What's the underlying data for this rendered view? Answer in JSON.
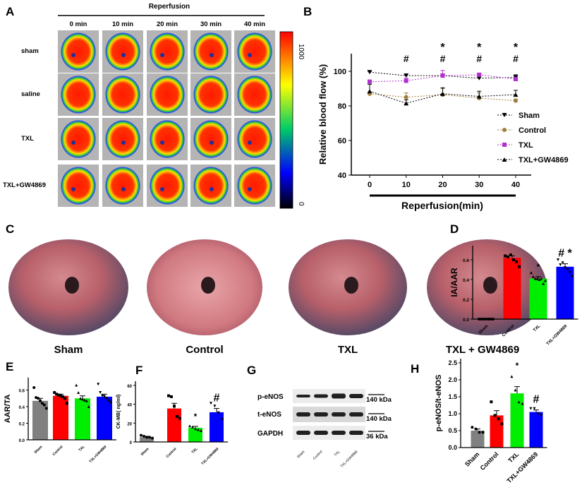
{
  "panel_labels": [
    "A",
    "B",
    "C",
    "D",
    "E",
    "F",
    "G",
    "H"
  ],
  "panel_a": {
    "title": "Reperfusion",
    "columns": [
      "0 min",
      "10 min",
      "20 min",
      "30 min",
      "40 min"
    ],
    "rows": [
      "sham",
      "saline",
      "TXL",
      "TXL+GW4869"
    ],
    "colorbar_max": "1000",
    "colorbar_min": "0"
  },
  "panel_c": {
    "labels": [
      "Sham",
      "Control",
      "TXL",
      "TXL + GW4869"
    ]
  },
  "panel_g": {
    "bands": [
      "p-eNOS",
      "t-eNOS",
      "GAPDH"
    ],
    "sizes": [
      "140 kDa",
      "140 kDa",
      "36 kDa"
    ],
    "lanes": [
      "Sham",
      "Control",
      "TXL",
      "TXL+GW4869"
    ]
  },
  "colors": {
    "sham": "#808080",
    "control": "#ff0000",
    "txl": "#00ee00",
    "txlgw": "#0000ff",
    "b_control": "#a07d3c",
    "b_txl": "#b030d0"
  },
  "chart_data": [
    {
      "id": "B",
      "type": "line",
      "xlabel": "Reperfusion(min)",
      "ylabel": "Relative blood flow (%)",
      "x": [
        0,
        10,
        20,
        30,
        40
      ],
      "ylim": [
        40,
        110
      ],
      "yticks": [
        40,
        60,
        80,
        100
      ],
      "series": [
        {
          "name": "Sham",
          "marker": "triangle-down",
          "values": [
            99.5,
            97.5,
            97.5,
            96,
            96.5
          ],
          "err": [
            0.5,
            1,
            1,
            1,
            1.5
          ]
        },
        {
          "name": "Control",
          "marker": "circle",
          "values": [
            87,
            85,
            86.5,
            84.5,
            83
          ],
          "err": [
            1,
            2.5,
            3.5,
            3,
            1
          ]
        },
        {
          "name": "TXL",
          "marker": "square",
          "values": [
            94,
            94.5,
            97.5,
            98,
            95.5
          ],
          "err": [
            1,
            1.5,
            3,
            1,
            1
          ]
        },
        {
          "name": "TXL+GW4869",
          "marker": "triangle-up",
          "values": [
            88.5,
            81.5,
            87,
            85.5,
            86.5
          ],
          "err": [
            4,
            2,
            3.5,
            3,
            2.5
          ]
        }
      ],
      "annotations_hash": [
        10,
        20,
        30,
        40
      ],
      "annotations_star": [
        20,
        30,
        40
      ],
      "hash": "#",
      "star": "*"
    },
    {
      "id": "D",
      "type": "bar",
      "ylabel": "IA/AAR",
      "ylim": [
        0,
        0.7
      ],
      "yticks": [
        "0.0",
        "0.2",
        "0.4",
        "0.6"
      ],
      "categories": [
        "Sham",
        "Control",
        "TXL",
        "TXL+GW4869"
      ],
      "values": [
        0,
        0.62,
        0.41,
        0.53
      ],
      "err": [
        0,
        0.02,
        0.02,
        0.03
      ],
      "points": [
        [
          0,
          0,
          0,
          0,
          0,
          0,
          0
        ],
        [
          0.64,
          0.63,
          0.65,
          0.6,
          0.58,
          0.53
        ],
        [
          0.47,
          0.43,
          0.41,
          0.41,
          0.4,
          0.41,
          0.36,
          0.39
        ],
        [
          0.6,
          0.55,
          0.57,
          0.52,
          0.5,
          0.47,
          0.43
        ]
      ],
      "marks": [
        "",
        "",
        "*",
        "# *"
      ]
    },
    {
      "id": "E",
      "type": "bar",
      "ylabel": "AAR/TA",
      "ylim": [
        0,
        0.7
      ],
      "yticks": [
        "0.0",
        "0.2",
        "0.4",
        "0.6"
      ],
      "categories": [
        "Sham",
        "Control",
        "TXL",
        "TXL+GW4869"
      ],
      "values": [
        0.47,
        0.53,
        0.5,
        0.52
      ],
      "err": [
        0.03,
        0.02,
        0.03,
        0.03
      ],
      "points": [
        [
          0.63,
          0.51,
          0.5,
          0.47,
          0.44,
          0.42,
          0.38
        ],
        [
          0.57,
          0.55,
          0.54,
          0.53,
          0.52,
          0.5,
          0.44
        ],
        [
          0.66,
          0.57,
          0.5,
          0.49,
          0.48,
          0.47,
          0.4
        ],
        [
          0.67,
          0.57,
          0.53,
          0.52,
          0.5,
          0.47,
          0.45
        ]
      ],
      "marks": [
        "",
        "",
        "",
        ""
      ]
    },
    {
      "id": "F",
      "type": "bar",
      "ylabel": "CK-MB( ng/ml)",
      "ylim": [
        0,
        60
      ],
      "yticks": [
        "0",
        "20",
        "40",
        "60"
      ],
      "categories": [
        "Sham",
        "Control",
        "TXL",
        "TXL+GW4869"
      ],
      "values": [
        5,
        35.5,
        15,
        31.5
      ],
      "err": [
        1,
        5.5,
        1.5,
        4
      ],
      "points": [
        [
          7,
          6,
          5,
          5,
          4
        ],
        [
          49,
          48,
          38,
          27,
          25
        ],
        [
          17,
          16,
          14,
          13,
          12
        ],
        [
          41,
          38,
          31,
          24
        ]
      ],
      "marks": [
        "",
        "",
        "*",
        "#"
      ]
    },
    {
      "id": "H",
      "type": "bar",
      "ylabel": "p-eNOS/t-eNOS",
      "ylim": [
        0,
        2.5
      ],
      "yticks": [
        "0.0",
        "0.5",
        "1.0",
        "1.5",
        "2.0",
        "2.5"
      ],
      "categories": [
        "Sham",
        "Control",
        "TXL",
        "TXL+GW4869"
      ],
      "values": [
        0.5,
        0.95,
        1.6,
        1.05
      ],
      "err": [
        0.05,
        0.14,
        0.2,
        0.06
      ],
      "points": [
        [
          0.6,
          0.55,
          0.45,
          0.45
        ],
        [
          1.35,
          0.95,
          0.85,
          0.7
        ],
        [
          2.1,
          1.7,
          1.35,
          1.3
        ],
        [
          1.15,
          1.15,
          1.0,
          0.95
        ]
      ],
      "marks": [
        "",
        "",
        "*",
        "#"
      ]
    }
  ]
}
